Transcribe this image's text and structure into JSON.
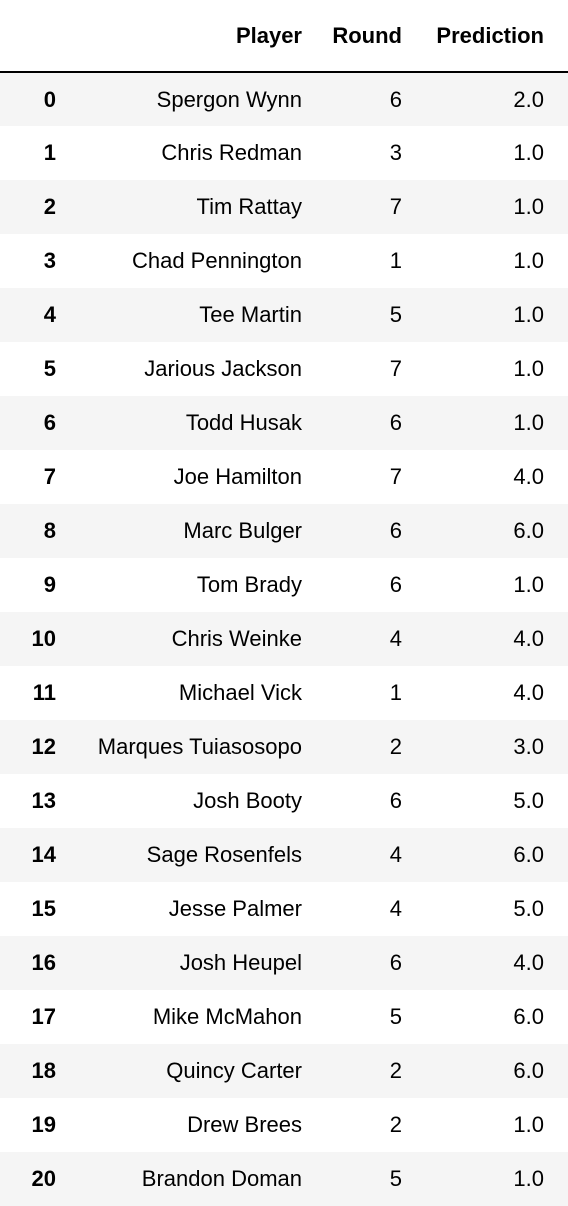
{
  "table": {
    "index_header": "",
    "columns": [
      "Player",
      "Round",
      "Prediction"
    ],
    "rows": [
      {
        "index": "0",
        "player": "Spergon Wynn",
        "round": "6",
        "prediction": "2.0"
      },
      {
        "index": "1",
        "player": "Chris Redman",
        "round": "3",
        "prediction": "1.0"
      },
      {
        "index": "2",
        "player": "Tim Rattay",
        "round": "7",
        "prediction": "1.0"
      },
      {
        "index": "3",
        "player": "Chad Pennington",
        "round": "1",
        "prediction": "1.0"
      },
      {
        "index": "4",
        "player": "Tee Martin",
        "round": "5",
        "prediction": "1.0"
      },
      {
        "index": "5",
        "player": "Jarious Jackson",
        "round": "7",
        "prediction": "1.0"
      },
      {
        "index": "6",
        "player": "Todd Husak",
        "round": "6",
        "prediction": "1.0"
      },
      {
        "index": "7",
        "player": "Joe Hamilton",
        "round": "7",
        "prediction": "4.0"
      },
      {
        "index": "8",
        "player": "Marc Bulger",
        "round": "6",
        "prediction": "6.0"
      },
      {
        "index": "9",
        "player": "Tom Brady",
        "round": "6",
        "prediction": "1.0"
      },
      {
        "index": "10",
        "player": "Chris Weinke",
        "round": "4",
        "prediction": "4.0"
      },
      {
        "index": "11",
        "player": "Michael Vick",
        "round": "1",
        "prediction": "4.0"
      },
      {
        "index": "12",
        "player": "Marques Tuiasosopo",
        "round": "2",
        "prediction": "3.0"
      },
      {
        "index": "13",
        "player": "Josh Booty",
        "round": "6",
        "prediction": "5.0"
      },
      {
        "index": "14",
        "player": "Sage Rosenfels",
        "round": "4",
        "prediction": "6.0"
      },
      {
        "index": "15",
        "player": "Jesse Palmer",
        "round": "4",
        "prediction": "5.0"
      },
      {
        "index": "16",
        "player": "Josh Heupel",
        "round": "6",
        "prediction": "4.0"
      },
      {
        "index": "17",
        "player": "Mike McMahon",
        "round": "5",
        "prediction": "6.0"
      },
      {
        "index": "18",
        "player": "Quincy Carter",
        "round": "2",
        "prediction": "6.0"
      },
      {
        "index": "19",
        "player": "Drew Brees",
        "round": "2",
        "prediction": "1.0"
      },
      {
        "index": "20",
        "player": "Brandon Doman",
        "round": "5",
        "prediction": "1.0"
      }
    ]
  }
}
